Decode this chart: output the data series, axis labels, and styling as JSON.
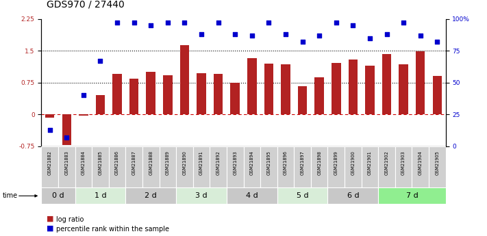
{
  "title": "GDS970 / 27440",
  "samples": [
    "GSM21882",
    "GSM21883",
    "GSM21884",
    "GSM21885",
    "GSM21886",
    "GSM21887",
    "GSM21888",
    "GSM21889",
    "GSM21890",
    "GSM21891",
    "GSM21892",
    "GSM21893",
    "GSM21894",
    "GSM21895",
    "GSM21896",
    "GSM21897",
    "GSM21898",
    "GSM21899",
    "GSM21900",
    "GSM21901",
    "GSM21902",
    "GSM21903",
    "GSM21904",
    "GSM21905"
  ],
  "log_ratio": [
    -0.08,
    -0.72,
    -0.02,
    0.45,
    0.95,
    0.85,
    1.0,
    0.93,
    1.63,
    0.97,
    0.95,
    0.75,
    1.33,
    1.2,
    1.18,
    0.67,
    0.88,
    1.22,
    1.3,
    1.15,
    1.42,
    1.18,
    1.48,
    0.9
  ],
  "percentile_rank": [
    13,
    7,
    40,
    67,
    97,
    97,
    95,
    97,
    97,
    88,
    97,
    88,
    87,
    97,
    88,
    82,
    87,
    97,
    95,
    85,
    88,
    97,
    87,
    82
  ],
  "ylim_left": [
    -0.75,
    2.25
  ],
  "ylim_right": [
    0,
    100
  ],
  "yticks_left": [
    -0.75,
    0,
    0.75,
    1.5,
    2.25
  ],
  "yticks_right": [
    0,
    25,
    50,
    75,
    100
  ],
  "hline_zero": 0,
  "hline_dotted1": 1.5,
  "hline_dotted2": 0.75,
  "bar_color": "#B22222",
  "dot_color": "#0000CD",
  "zero_line_color": "#CC0000",
  "dot_line_color": "#000000",
  "time_groups": [
    {
      "label": "0 d",
      "start": 0,
      "end": 2,
      "color": "#C8C8C8"
    },
    {
      "label": "1 d",
      "start": 2,
      "end": 5,
      "color": "#D8EDD8"
    },
    {
      "label": "2 d",
      "start": 5,
      "end": 8,
      "color": "#C8C8C8"
    },
    {
      "label": "3 d",
      "start": 8,
      "end": 11,
      "color": "#D8EDD8"
    },
    {
      "label": "4 d",
      "start": 11,
      "end": 14,
      "color": "#C8C8C8"
    },
    {
      "label": "5 d",
      "start": 14,
      "end": 17,
      "color": "#D8EDD8"
    },
    {
      "label": "6 d",
      "start": 17,
      "end": 20,
      "color": "#C8C8C8"
    },
    {
      "label": "7 d",
      "start": 20,
      "end": 24,
      "color": "#90EE90"
    }
  ],
  "legend_items": [
    {
      "label": "log ratio",
      "color": "#B22222"
    },
    {
      "label": "percentile rank within the sample",
      "color": "#0000CD"
    }
  ],
  "title_fontsize": 10,
  "tick_fontsize": 6.5,
  "time_fontsize": 8
}
